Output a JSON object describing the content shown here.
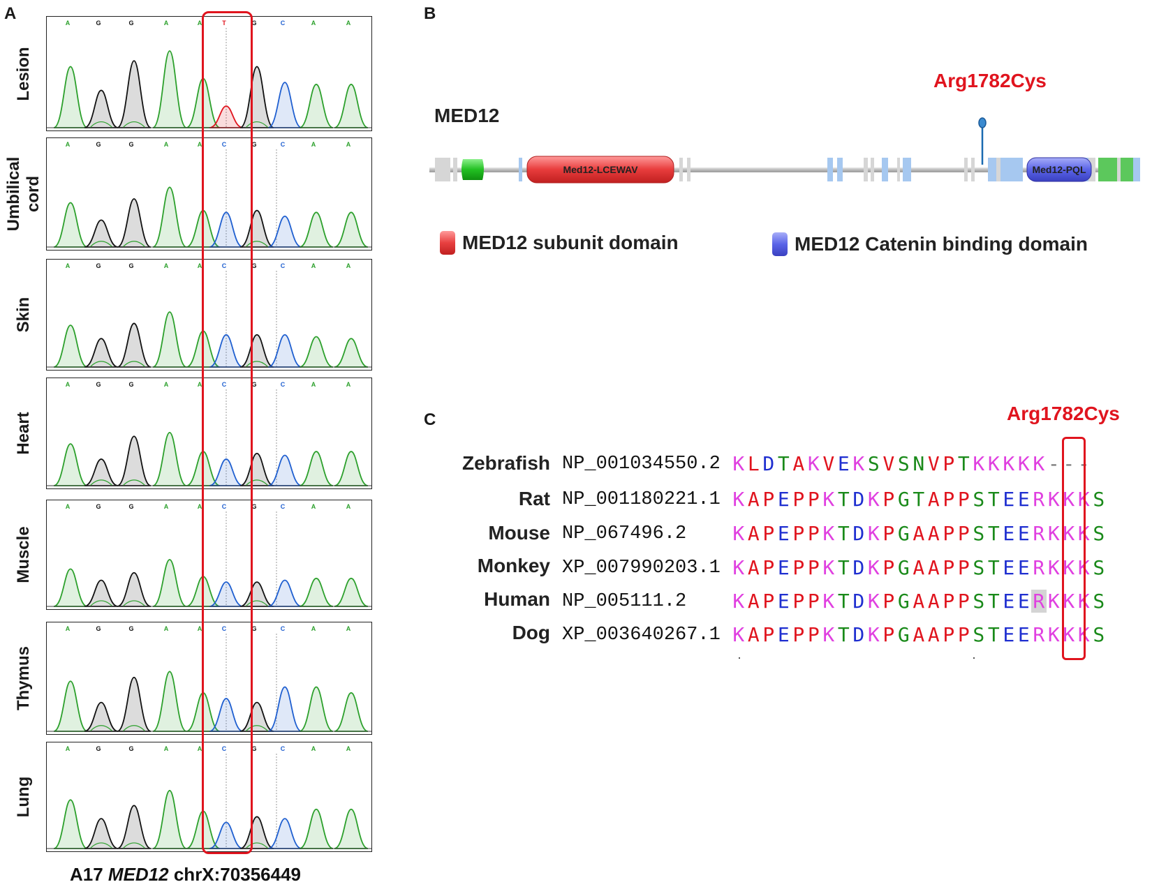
{
  "panels": {
    "a": "A",
    "b": "B",
    "c": "C"
  },
  "panel_a": {
    "bases": [
      "A",
      "G",
      "G",
      "A",
      "A",
      "T",
      "G",
      "C",
      "A",
      "A"
    ],
    "base_colors": {
      "A": "#2ca02c",
      "G": "#111111",
      "C": "#1f5fd0",
      "T": "#e0141e"
    },
    "tissues": [
      {
        "label": "Lesion",
        "variant": "T"
      },
      {
        "label": "Umbilical cord",
        "variant": "C"
      },
      {
        "label": "Skin",
        "variant": "C"
      },
      {
        "label": "Heart",
        "variant": "C"
      },
      {
        "label": "Muscle",
        "variant": "C"
      },
      {
        "label": "Thymus",
        "variant": "C"
      },
      {
        "label": "Lung",
        "variant": "C"
      }
    ],
    "footer": {
      "prefix": "A17 ",
      "gene": "MED12",
      "suffix": " chrX:70356449"
    }
  },
  "panel_b": {
    "gene": "MED12",
    "mutation": "Arg1782Cys",
    "domain_1": "Med12-LCEWAV",
    "domain_2": "Med12-PQL",
    "legend": [
      {
        "label": "MED12 subunit domain",
        "color": "#e94a4a"
      },
      {
        "label": "MED12 Catenin binding domain",
        "color": "#4a5ce0"
      }
    ]
  },
  "panel_c": {
    "mutation": "Arg1782Cys",
    "aa_colors": {
      "K": "#e040e0",
      "R": "#e040e0",
      "H": "#e040e0",
      "D": "#1f2fd0",
      "E": "#1f2fd0",
      "A": "#e0141e",
      "V": "#e0141e",
      "P": "#e0141e",
      "L": "#e0141e",
      "F": "#e0141e",
      "M": "#e0141e",
      "W": "#e0141e",
      "I": "#e0141e",
      "G": "#1a8a1a",
      "S": "#1a8a1a",
      "T": "#1a8a1a",
      "N": "#1a8a1a",
      "Q": "#1a8a1a",
      "Y": "#1a8a1a",
      "C": "#1a8a1a",
      "-": "#777777"
    },
    "rows": [
      {
        "species": "Zebrafish",
        "accession": "NP_001034550.2",
        "sequence": "KLDTAKVEKSVSNVPTKKKKK---"
      },
      {
        "species": "Rat",
        "accession": "NP_001180221.1",
        "sequence": "KAPEPPKTDKPGTAPPSTEERKKKS"
      },
      {
        "species": "Mouse",
        "accession": "NP_067496.2",
        "sequence": "KAPEPPKTDKPGAAPPSTEERKKKS"
      },
      {
        "species": "Monkey",
        "accession": "XP_007990203.1",
        "sequence": "KAPEPPKTDKPGAAPPSTEERKKKS"
      },
      {
        "species": "Human",
        "accession": "NP_005111.2",
        "sequence": "KAPEPPKTDKPGAAPPSTEERKKKS"
      },
      {
        "species": "Dog",
        "accession": "XP_003640267.1",
        "sequence": "KAPEPPKTDKPGAAPPSTEERKKKS"
      }
    ]
  }
}
